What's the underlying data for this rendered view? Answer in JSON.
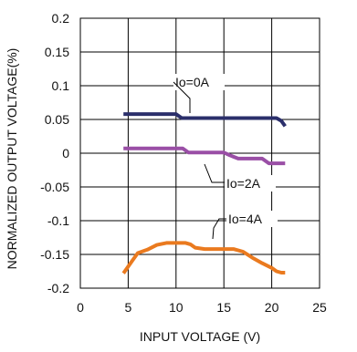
{
  "chart_data": {
    "type": "line",
    "title": "",
    "xlabel": "INPUT VOLTAGE (V)",
    "ylabel": "NORMALIZED OUTPUT VOLTAGE(%)",
    "xlim": [
      0,
      25
    ],
    "ylim": [
      -0.2,
      0.2
    ],
    "x_ticks": [
      0,
      5,
      10,
      15,
      20,
      25
    ],
    "x_tick_labels": [
      "0",
      "5",
      "10",
      "15",
      "20",
      "25"
    ],
    "y_ticks": [
      0.2,
      0.15,
      0.1,
      0.05,
      0,
      -0.05,
      -0.1,
      -0.15,
      -0.2
    ],
    "y_tick_labels": [
      "0.2",
      "0.15",
      "0.1",
      "0.05",
      "0",
      "-0.05",
      "-0.1",
      "-0.15",
      "-0.2"
    ],
    "grid": true,
    "legend": "none",
    "series": [
      {
        "name": "Io=0A",
        "color": "#2b2f6b",
        "x": [
          4.5,
          5,
          7,
          9,
          10,
          10.6,
          12,
          14,
          16,
          18,
          20,
          20.5,
          21,
          21.4
        ],
        "y": [
          0.058,
          0.058,
          0.058,
          0.058,
          0.058,
          0.052,
          0.052,
          0.052,
          0.052,
          0.052,
          0.052,
          0.052,
          0.048,
          0.04
        ]
      },
      {
        "name": "Io=2A",
        "color": "#9a4fa6",
        "x": [
          4.5,
          5,
          7,
          9,
          10.7,
          11.3,
          12,
          14,
          15,
          15.6,
          16.5,
          17.5,
          19,
          19.7,
          21,
          21.4
        ],
        "y": [
          0.007,
          0.007,
          0.007,
          0.007,
          0.007,
          0.001,
          0.001,
          0.001,
          0.001,
          -0.003,
          -0.008,
          -0.008,
          -0.008,
          -0.015,
          -0.015,
          -0.015
        ]
      },
      {
        "name": "Io=4A",
        "color": "#ea7a1f",
        "x": [
          4.5,
          5.5,
          6,
          7,
          8,
          9,
          10,
          11,
          11.5,
          12,
          13,
          14,
          15,
          16,
          17,
          18,
          19,
          20,
          20.5,
          21,
          21.4
        ],
        "y": [
          -0.178,
          -0.158,
          -0.148,
          -0.143,
          -0.136,
          -0.133,
          -0.133,
          -0.133,
          -0.135,
          -0.14,
          -0.142,
          -0.142,
          -0.142,
          -0.142,
          -0.146,
          -0.155,
          -0.163,
          -0.17,
          -0.175,
          -0.177,
          -0.177
        ]
      }
    ],
    "annotations": [
      {
        "text": "Io=0A",
        "series": 0
      },
      {
        "text": "Io=2A",
        "series": 1
      },
      {
        "text": "Io=4A",
        "series": 2
      }
    ]
  }
}
